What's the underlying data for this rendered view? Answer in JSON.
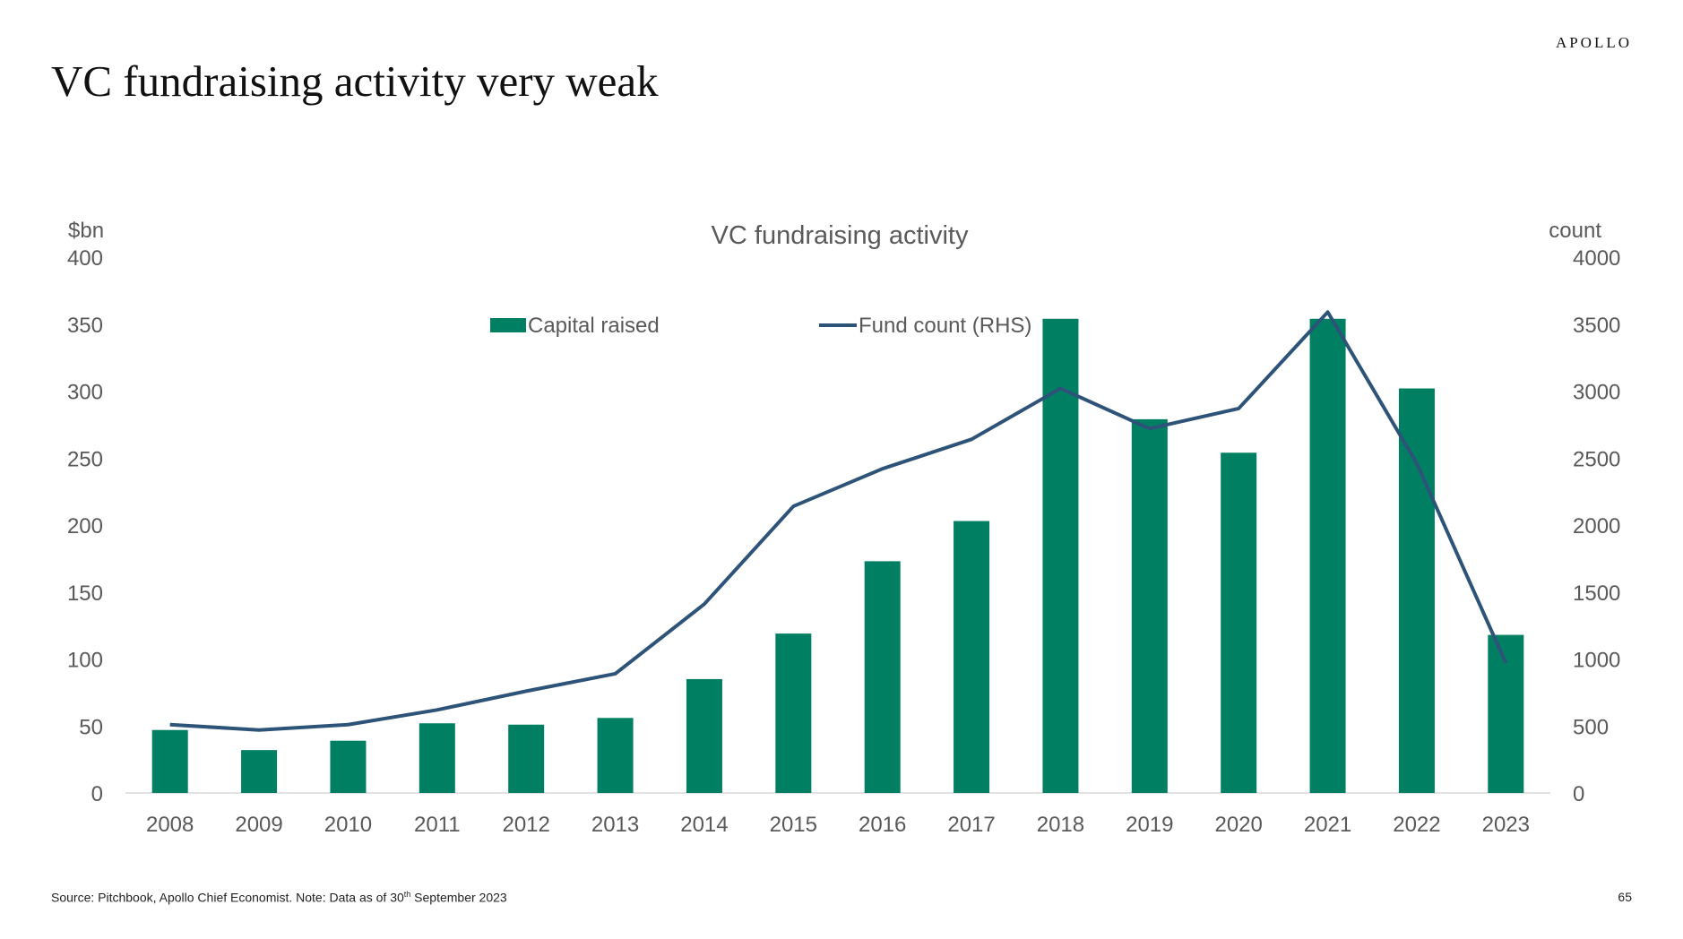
{
  "slide": {
    "logo": "APOLLO",
    "title": "VC fundraising activity very weak",
    "footnote_pre": "Source: Pitchbook, Apollo Chief Economist. Note: Data as of 30",
    "footnote_sup": "th",
    "footnote_post": " September 2023",
    "page_number": "65"
  },
  "colors": {
    "bar": "#007F62",
    "line": "#2E5378",
    "axis_text": "#595959",
    "axis_line": "#D9D9D9"
  },
  "chart_data": {
    "type": "bar",
    "title": "VC fundraising activity",
    "y_left_label": "$bn",
    "y_right_label": "count",
    "ylim_left": [
      0,
      400
    ],
    "ylim_right": [
      0,
      4000
    ],
    "y_left_ticks": [
      "0",
      "50",
      "100",
      "150",
      "200",
      "250",
      "300",
      "350",
      "400"
    ],
    "y_right_ticks": [
      "0",
      "500",
      "1000",
      "1500",
      "2000",
      "2500",
      "3000",
      "3500",
      "4000"
    ],
    "categories": [
      "2008",
      "2009",
      "2010",
      "2011",
      "2012",
      "2013",
      "2014",
      "2015",
      "2016",
      "2017",
      "2018",
      "2019",
      "2020",
      "2021",
      "2022",
      "2023"
    ],
    "legend_position": "top-center",
    "grid": false,
    "series": [
      {
        "name": "Capital raised",
        "type": "bar",
        "axis": "left",
        "values": [
          47,
          32,
          39,
          52,
          51,
          56,
          85,
          119,
          173,
          203,
          354,
          279,
          254,
          354,
          302,
          118
        ]
      },
      {
        "name": "Fund count (RHS)",
        "type": "line",
        "axis": "right",
        "values": [
          510,
          470,
          510,
          620,
          760,
          890,
          1410,
          2140,
          2420,
          2640,
          3020,
          2720,
          2870,
          3590,
          2460,
          970
        ]
      }
    ]
  }
}
